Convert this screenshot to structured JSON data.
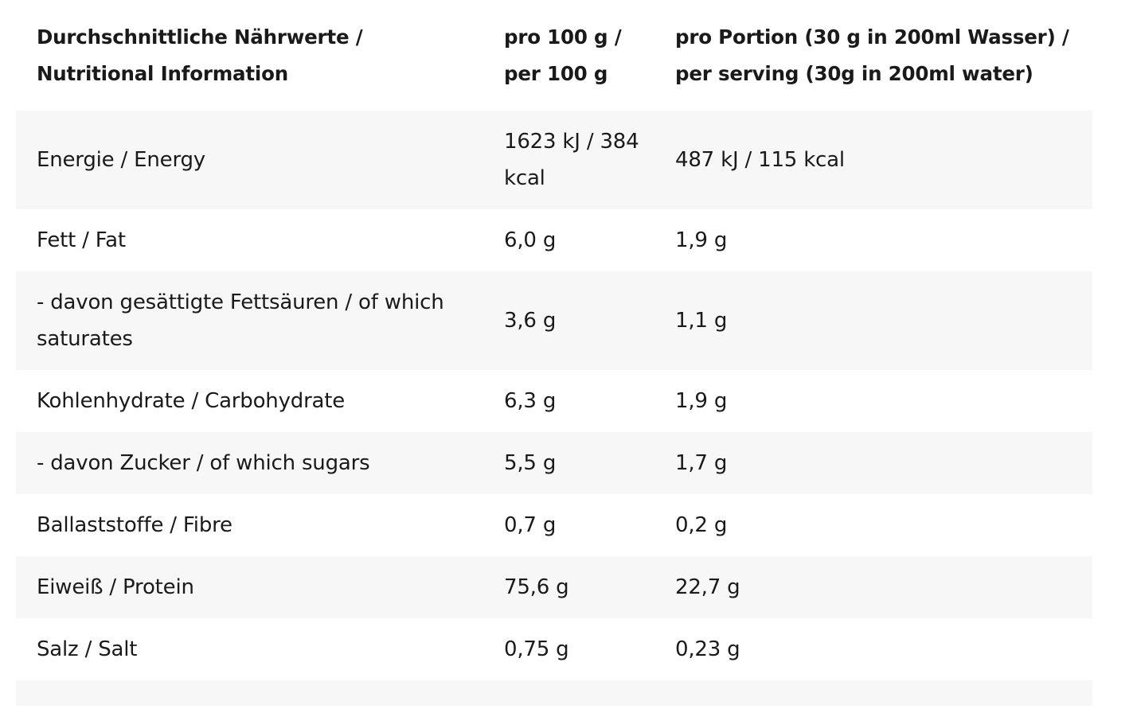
{
  "table": {
    "headers": [
      "Durchschnittliche Nährwerte / Nutritional Information",
      "pro 100 g / per 100 g",
      "pro Portion (30 g in 200ml Wasser) / per serving (30g in 200ml water)"
    ],
    "rows": [
      {
        "nutrient": "Energie / Energy",
        "per_100g": "1623 kJ / 384 kcal",
        "per_serving": "487 kJ / 115 kcal"
      },
      {
        "nutrient": "Fett / Fat",
        "per_100g": "6,0 g",
        "per_serving": "1,9 g"
      },
      {
        "nutrient": "- davon gesättigte Fettsäuren / of which saturates",
        "per_100g": "3,6 g",
        "per_serving": "1,1 g"
      },
      {
        "nutrient": "Kohlenhydrate / Carbohydrate",
        "per_100g": "6,3 g",
        "per_serving": "1,9 g"
      },
      {
        "nutrient": "- davon Zucker / of which sugars",
        "per_100g": "5,5 g",
        "per_serving": "1,7 g"
      },
      {
        "nutrient": "Ballaststoffe / Fibre",
        "per_100g": "0,7 g",
        "per_serving": "0,2 g"
      },
      {
        "nutrient": "Eiweiß / Protein",
        "per_100g": "75,6 g",
        "per_serving": "22,7 g"
      },
      {
        "nutrient": "Salz / Salt",
        "per_100g": "0,75 g",
        "per_serving": "0,23 g"
      }
    ]
  },
  "colors": {
    "row_shade": "#f7f7f7",
    "text": "#1a1a1a",
    "background": "#ffffff"
  }
}
